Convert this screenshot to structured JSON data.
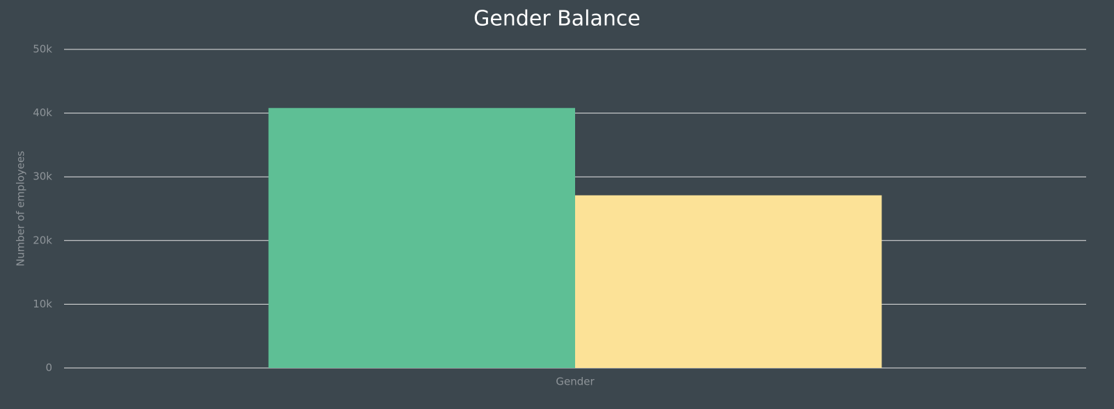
{
  "chart_data": {
    "type": "bar",
    "title": "Gender Balance",
    "ylabel": "Number of employees",
    "categories": [
      "Gender"
    ],
    "series": [
      {
        "color": "#5ebf95",
        "values": [
          40800
        ]
      },
      {
        "color": "#fce297",
        "values": [
          27100
        ]
      }
    ],
    "ylim": [
      0,
      50000
    ],
    "yticks": [
      0,
      {
        "value": 10000,
        "label": "10k"
      },
      {
        "value": 20000,
        "label": "20k"
      },
      {
        "value": 30000,
        "label": "30k"
      },
      {
        "value": 40000,
        "label": "40k"
      },
      {
        "value": 50000,
        "label": "50k"
      }
    ],
    "grid": true
  }
}
